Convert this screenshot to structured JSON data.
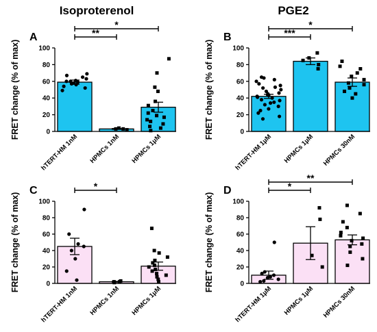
{
  "titles": {
    "left": "Isoproterenol",
    "right": "PGE2"
  },
  "colors": {
    "blue_fill": "#1EC4F0",
    "pink_fill": "#FBE0F5",
    "stroke": "#000000"
  },
  "chart_data": [
    {
      "panel": "A",
      "type": "bar",
      "ylabel": "FRET change (% of max)",
      "ylim": [
        0,
        100
      ],
      "yticks": [
        0,
        20,
        40,
        60,
        80,
        100
      ],
      "fill": "blue",
      "categories": [
        "hTERT-HM 1nM",
        "HPMCs 1nM",
        "HPMCs 1μM"
      ],
      "values": [
        59,
        3,
        29
      ],
      "sem": [
        2.5,
        0.5,
        6
      ],
      "points": [
        [
          49,
          52,
          54,
          56,
          57,
          58,
          59,
          60,
          60,
          61,
          63,
          65,
          67,
          69
        ],
        [
          2,
          3,
          3,
          4
        ],
        [
          1,
          4,
          6,
          9,
          12,
          14,
          17,
          19,
          22,
          25,
          31,
          36,
          48,
          53,
          70,
          87
        ]
      ],
      "significance": [
        {
          "from": 0,
          "to": 1,
          "label": "**"
        },
        {
          "from": 0,
          "to": 2,
          "label": "*"
        }
      ]
    },
    {
      "panel": "B",
      "type": "bar",
      "ylabel": "FRET change (% of max)",
      "ylim": [
        0,
        100
      ],
      "yticks": [
        0,
        20,
        40,
        60,
        80,
        100
      ],
      "fill": "blue",
      "categories": [
        "hTERT-HM 1µM",
        "HPMCs 1µM",
        "HPMCs 30nM"
      ],
      "values": [
        42,
        84,
        59
      ],
      "sem": [
        2.5,
        4,
        5
      ],
      "points": [
        [
          15,
          18,
          22,
          25,
          27,
          30,
          32,
          34,
          35,
          37,
          38,
          40,
          41,
          42,
          43,
          44,
          45,
          46,
          48,
          50,
          52,
          53,
          55,
          57,
          60,
          62,
          64,
          65
        ],
        [
          75,
          80,
          85,
          88,
          94
        ],
        [
          40,
          45,
          48,
          52,
          56,
          58,
          62,
          66,
          70,
          75,
          78,
          84
        ]
      ],
      "significance": [
        {
          "from": 0,
          "to": 1,
          "label": "***"
        },
        {
          "from": 0,
          "to": 2,
          "label": "*"
        }
      ]
    },
    {
      "panel": "C",
      "type": "bar",
      "ylabel": "FRET change (% of max)",
      "ylim": [
        0,
        100
      ],
      "yticks": [
        0,
        20,
        40,
        60,
        80,
        100
      ],
      "fill": "pink",
      "categories": [
        "hTERT-HM 1nM",
        "HPMCs 1nM",
        "HPMCs 1μM"
      ],
      "values": [
        45,
        2,
        21
      ],
      "sem": [
        10,
        0.5,
        5
      ],
      "points": [
        [
          4,
          15,
          30,
          40,
          45,
          48,
          60,
          90
        ],
        [
          1,
          2,
          2,
          3
        ],
        [
          2,
          5,
          8,
          10,
          12,
          15,
          17,
          20,
          22,
          25,
          28,
          32,
          37,
          40,
          67
        ]
      ],
      "significance": [
        {
          "from": 0,
          "to": 1,
          "label": "*"
        }
      ]
    },
    {
      "panel": "D",
      "type": "bar",
      "ylabel": "FRET change (% of max)",
      "ylim": [
        0,
        100
      ],
      "yticks": [
        0,
        20,
        40,
        60,
        80,
        100
      ],
      "fill": "pink",
      "categories": [
        "hTERT-HM 1µM",
        "HPMCs 1µM",
        "HPMCs 30nM"
      ],
      "values": [
        10,
        49,
        53
      ],
      "sem": [
        5,
        20,
        6
      ],
      "points": [
        [
          2,
          3,
          5,
          7,
          8,
          10,
          12,
          14,
          50
        ],
        [
          20,
          34,
          78,
          92
        ],
        [
          22,
          30,
          38,
          45,
          48,
          52,
          55,
          58,
          62,
          68,
          75,
          85,
          95
        ]
      ],
      "significance": [
        {
          "from": 0,
          "to": 1,
          "label": "*"
        },
        {
          "from": 0,
          "to": 2,
          "label": "**"
        }
      ]
    }
  ]
}
